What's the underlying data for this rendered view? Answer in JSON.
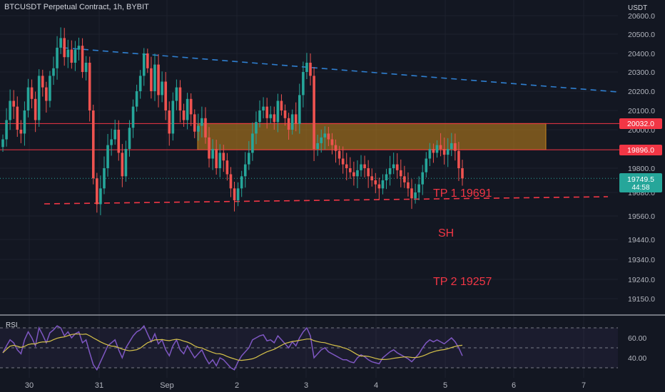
{
  "header": {
    "title": "BTCUSDT Perpetual Contract, 1h, BYBIT"
  },
  "price_axis": {
    "currency": "USDT",
    "ticks": [
      "20600.0",
      "20500.0",
      "20400.0",
      "20300.0",
      "20200.0",
      "20100.0",
      "20000.0",
      "19800.0",
      "19680.0",
      "19560.0",
      "19440.0",
      "19340.0",
      "19240.0",
      "19150.0"
    ]
  },
  "price_tags": {
    "upper_level": "20032.0",
    "lower_level": "19896.0",
    "last_price": "19749.5",
    "countdown": "44:58",
    "level_color": "#f23645",
    "last_color": "#26a69a"
  },
  "annotations": {
    "tp1": "TP 1  19691",
    "sh": "SH",
    "tp2": "TP 2  19257",
    "color": "#f23645"
  },
  "rsi": {
    "label": "RSI",
    "ticks": [
      "60.00",
      "40.00"
    ],
    "line_color": "#7e57c2",
    "ma_color": "#d6c24a"
  },
  "time_axis": {
    "labels": [
      "30",
      "31",
      "Sep",
      "2",
      "3",
      "4",
      "5",
      "6",
      "7"
    ]
  },
  "chart_data": {
    "type": "candlestick",
    "title": "BTCUSDT Perpetual Contract, 1h, BYBIT",
    "ylabel": "USDT",
    "ylim": [
      19100,
      20640
    ],
    "up_color": "#26a69a",
    "down_color": "#ef5350",
    "zone": {
      "low": 19896,
      "high": 20032,
      "color": "#c8861c"
    },
    "levels": [
      20032,
      19896
    ],
    "resistance_trendline": {
      "from": [
        "Aug 30 ~14:00",
        20430
      ],
      "to": [
        "Sep 7 ~12:00",
        20200
      ]
    },
    "support_trendline": {
      "from": [
        "Aug 30 ~06:00",
        19620
      ],
      "to": [
        "Sep 7 ~00:00",
        19660
      ]
    },
    "last_price": 19749.5,
    "candle_closes": [
      19950,
      20050,
      20150,
      20120,
      20000,
      19980,
      20100,
      20220,
      20160,
      20050,
      20280,
      20220,
      20150,
      20280,
      20320,
      20430,
      20480,
      20380,
      20420,
      20350,
      20420,
      20440,
      20300,
      20350,
      20100,
      19750,
      19620,
      19700,
      19800,
      19920,
      19950,
      20000,
      19880,
      19760,
      19900,
      20010,
      20120,
      20200,
      20280,
      20400,
      20320,
      20200,
      20340,
      20180,
      20250,
      20100,
      19980,
      20150,
      20220,
      20100,
      20050,
      20160,
      20080,
      19990,
      20020,
      20060,
      19960,
      19850,
      19900,
      19800,
      19880,
      19840,
      19770,
      19700,
      19640,
      19700,
      19760,
      19820,
      19880,
      19980,
      20040,
      20100,
      20120,
      20060,
      20080,
      20040,
      20150,
      20100,
      20060,
      20000,
      20080,
      20030,
      20180,
      20300,
      20350,
      20280,
      19900,
      19930,
      19960,
      19980,
      19950,
      19920,
      19890,
      19850,
      19820,
      19800,
      19780,
      19760,
      19790,
      19820,
      19800,
      19760,
      19740,
      19720,
      19700,
      19740,
      19770,
      19800,
      19820,
      19790,
      19760,
      19730,
      19700,
      19650,
      19680,
      19720,
      19780,
      19850,
      19900,
      19880,
      19920,
      19900,
      19870,
      19900,
      19930,
      19890,
      19800,
      19749.5
    ],
    "rsi_values": [
      45,
      52,
      58,
      55,
      48,
      44,
      58,
      66,
      60,
      52,
      70,
      63,
      55,
      65,
      68,
      72,
      70,
      62,
      66,
      60,
      64,
      66,
      55,
      58,
      45,
      33,
      28,
      36,
      44,
      52,
      55,
      58,
      48,
      40,
      50,
      56,
      62,
      66,
      68,
      72,
      64,
      56,
      64,
      54,
      58,
      48,
      42,
      52,
      58,
      48,
      44,
      52,
      46,
      40,
      44,
      48,
      40,
      34,
      38,
      32,
      40,
      38,
      34,
      30,
      28,
      36,
      42,
      46,
      50,
      58,
      60,
      62,
      63,
      57,
      58,
      55,
      62,
      58,
      54,
      50,
      56,
      52,
      60,
      66,
      70,
      62,
      40,
      44,
      48,
      50,
      46,
      44,
      42,
      40,
      38,
      38,
      36,
      35,
      40,
      43,
      41,
      38,
      36,
      35,
      34,
      40,
      43,
      46,
      48,
      45,
      43,
      41,
      39,
      36,
      40,
      44,
      50,
      55,
      58,
      56,
      58,
      56,
      54,
      57,
      60,
      56,
      50,
      42
    ]
  }
}
